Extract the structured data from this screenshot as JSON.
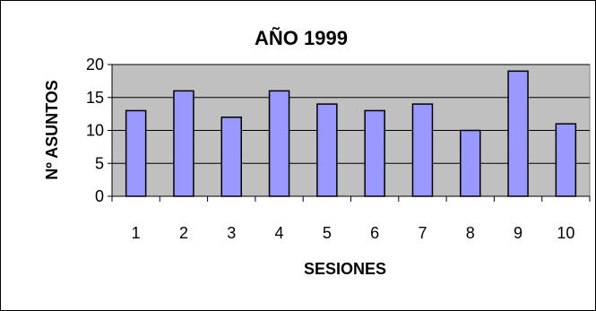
{
  "chart_data": {
    "type": "bar",
    "title": "AÑO 1999",
    "xlabel": "SESIONES",
    "ylabel": "Nº ASUNTOS",
    "categories": [
      "1",
      "2",
      "3",
      "4",
      "5",
      "6",
      "7",
      "8",
      "9",
      "10"
    ],
    "values": [
      13,
      16,
      12,
      16,
      14,
      13,
      14,
      10,
      19,
      11
    ],
    "ylim": [
      0,
      20
    ],
    "yticks": [
      "0",
      "5",
      "10",
      "15",
      "20"
    ],
    "grid": true,
    "legend": "none",
    "colors": {
      "bar_fill": "#9999ff",
      "bar_stroke": "#000000",
      "plot_background": "#c0c0c0",
      "gridline": "#000000"
    }
  }
}
